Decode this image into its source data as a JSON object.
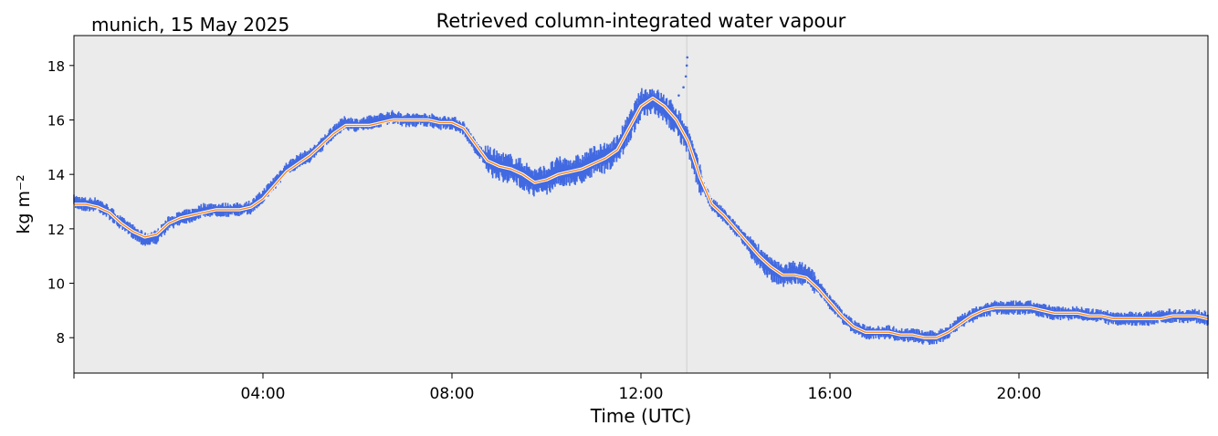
{
  "header": {
    "location_date": "munich, 15 May 2025"
  },
  "chart_data": {
    "type": "line",
    "title": "Retrieved column-integrated water vapour",
    "xlabel": "Time (UTC)",
    "ylabel": "kg m⁻²",
    "x_unit": "hours UTC",
    "xlim": [
      0,
      24
    ],
    "ylim": [
      6.7,
      19.1
    ],
    "x_ticks": [
      4,
      8,
      12,
      16,
      20
    ],
    "x_tick_labels": [
      "04:00",
      "08:00",
      "12:00",
      "16:00",
      "20:00"
    ],
    "y_ticks": [
      8,
      10,
      12,
      14,
      16,
      18
    ],
    "y_tick_labels": [
      "8",
      "10",
      "12",
      "14",
      "16",
      "18"
    ],
    "grid": false,
    "background": "#ebebeb",
    "vertical_marker_x": 12.97,
    "colors": {
      "raw": "#4169e1",
      "smoothed_outline": "#ffffff",
      "smoothed": "#ff7f0e",
      "marker_line": "#d0d0d0"
    },
    "series": [
      {
        "kind": "raw-scatter",
        "x": [
          0,
          0.25,
          0.5,
          0.75,
          1.0,
          1.25,
          1.5,
          1.75,
          2.0,
          2.25,
          2.5,
          2.75,
          3.0,
          3.25,
          3.5,
          3.75,
          4.0,
          4.25,
          4.5,
          4.75,
          5.0,
          5.25,
          5.5,
          5.75,
          6.0,
          6.25,
          6.5,
          6.75,
          7.0,
          7.25,
          7.5,
          7.75,
          8.0,
          8.25,
          8.5,
          8.75,
          9.0,
          9.25,
          9.5,
          9.75,
          10.0,
          10.25,
          10.5,
          10.75,
          11.0,
          11.25,
          11.5,
          11.75,
          12.0,
          12.25,
          12.5,
          12.75,
          13.0,
          13.25,
          13.5,
          13.75,
          14.0,
          14.25,
          14.5,
          14.75,
          15.0,
          15.25,
          15.5,
          15.75,
          16.0,
          16.25,
          16.5,
          16.75,
          17.0,
          17.25,
          17.5,
          17.75,
          18.0,
          18.25,
          18.5,
          18.75,
          19.0,
          19.25,
          19.5,
          19.75,
          20.0,
          20.25,
          20.5,
          20.75,
          21.0,
          21.25,
          21.5,
          21.75,
          22.0,
          22.25,
          22.5,
          22.75,
          23.0,
          23.25,
          23.5,
          23.75,
          24.0
        ],
        "y": [
          13.0,
          12.9,
          12.9,
          12.6,
          12.2,
          11.9,
          11.6,
          11.7,
          12.2,
          12.4,
          12.5,
          12.7,
          12.7,
          12.7,
          12.7,
          12.8,
          13.2,
          13.7,
          14.2,
          14.5,
          14.7,
          15.1,
          15.6,
          15.9,
          15.8,
          15.9,
          16.0,
          16.1,
          16.0,
          16.0,
          16.0,
          15.9,
          15.9,
          15.7,
          15.0,
          14.5,
          14.3,
          14.2,
          14.0,
          13.7,
          13.8,
          14.1,
          14.1,
          14.2,
          14.5,
          14.6,
          14.9,
          15.7,
          16.6,
          16.7,
          16.4,
          16.0,
          15.2,
          13.8,
          12.9,
          12.5,
          12.0,
          11.5,
          11.0,
          10.5,
          10.3,
          10.4,
          10.3,
          9.9,
          9.3,
          8.8,
          8.4,
          8.2,
          8.2,
          8.2,
          8.1,
          8.1,
          8.0,
          8.0,
          8.2,
          8.6,
          8.8,
          9.0,
          9.1,
          9.1,
          9.1,
          9.1,
          9.0,
          8.9,
          8.9,
          8.9,
          8.8,
          8.8,
          8.7,
          8.7,
          8.7,
          8.7,
          8.8,
          8.8,
          8.8,
          8.8,
          8.7
        ]
      },
      {
        "kind": "smoothed-line",
        "x": [
          0,
          0.25,
          0.5,
          0.75,
          1.0,
          1.25,
          1.5,
          1.75,
          2.0,
          2.25,
          2.5,
          2.75,
          3.0,
          3.25,
          3.5,
          3.75,
          4.0,
          4.25,
          4.5,
          4.75,
          5.0,
          5.25,
          5.5,
          5.75,
          6.0,
          6.25,
          6.5,
          6.75,
          7.0,
          7.25,
          7.5,
          7.75,
          8.0,
          8.25,
          8.5,
          8.75,
          9.0,
          9.25,
          9.5,
          9.75,
          10.0,
          10.25,
          10.5,
          10.75,
          11.0,
          11.25,
          11.5,
          11.75,
          12.0,
          12.25,
          12.5,
          12.75,
          13.0,
          13.25,
          13.5,
          13.75,
          14.0,
          14.25,
          14.5,
          14.75,
          15.0,
          15.25,
          15.5,
          15.75,
          16.0,
          16.25,
          16.5,
          16.75,
          17.0,
          17.25,
          17.5,
          17.75,
          18.0,
          18.25,
          18.5,
          18.75,
          19.0,
          19.25,
          19.5,
          19.75,
          20.0,
          20.25,
          20.5,
          20.75,
          21.0,
          21.25,
          21.5,
          21.75,
          22.0,
          22.25,
          22.5,
          22.75,
          23.0,
          23.25,
          23.5,
          23.75,
          24.0
        ],
        "y": [
          12.9,
          12.9,
          12.8,
          12.6,
          12.2,
          11.9,
          11.7,
          11.8,
          12.2,
          12.4,
          12.5,
          12.6,
          12.7,
          12.7,
          12.7,
          12.8,
          13.1,
          13.6,
          14.1,
          14.4,
          14.7,
          15.1,
          15.5,
          15.8,
          15.8,
          15.8,
          15.9,
          16.0,
          16.0,
          16.0,
          16.0,
          15.9,
          15.9,
          15.7,
          15.1,
          14.5,
          14.3,
          14.2,
          14.0,
          13.7,
          13.8,
          14.0,
          14.1,
          14.2,
          14.4,
          14.6,
          14.9,
          15.7,
          16.5,
          16.8,
          16.5,
          16.0,
          15.2,
          13.9,
          12.9,
          12.5,
          12.0,
          11.5,
          11.0,
          10.6,
          10.3,
          10.3,
          10.2,
          9.8,
          9.3,
          8.8,
          8.4,
          8.2,
          8.2,
          8.2,
          8.1,
          8.1,
          8.0,
          8.0,
          8.2,
          8.5,
          8.8,
          9.0,
          9.1,
          9.1,
          9.1,
          9.1,
          9.0,
          8.9,
          8.9,
          8.9,
          8.8,
          8.8,
          8.7,
          8.7,
          8.7,
          8.7,
          8.7,
          8.8,
          8.8,
          8.8,
          8.7
        ]
      }
    ]
  }
}
